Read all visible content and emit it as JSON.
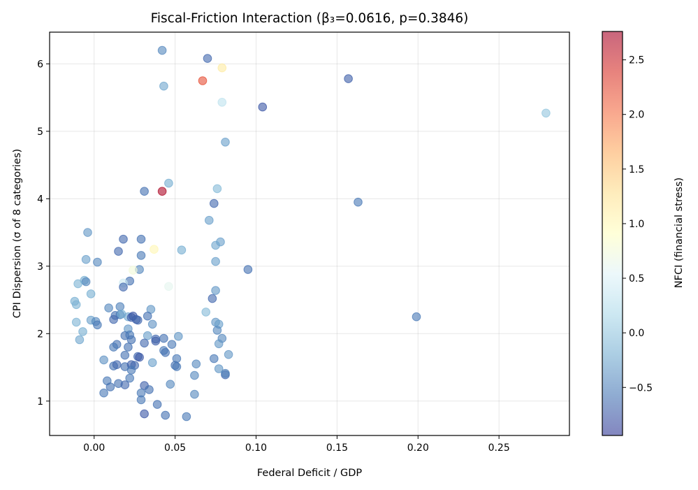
{
  "chart_data": {
    "type": "scatter",
    "title": "Fiscal-Friction Interaction (β₃=0.0616, p=0.3846)",
    "xlabel": "Federal Deficit / GDP",
    "ylabel": "CPI Dispersion (σ of 8 categories)",
    "colorbar_label": "NFCI (financial stress)",
    "xlim": [
      -0.0275,
      0.2935
    ],
    "ylim": [
      0.49,
      6.47
    ],
    "clim": [
      -0.94,
      2.76
    ],
    "xticks": [
      0.0,
      0.05,
      0.1,
      0.15,
      0.2,
      0.25
    ],
    "xtick_labels": [
      "0.00",
      "0.05",
      "0.10",
      "0.15",
      "0.20",
      "0.25"
    ],
    "yticks": [
      1,
      2,
      3,
      4,
      5,
      6
    ],
    "ytick_labels": [
      "1",
      "2",
      "3",
      "4",
      "5",
      "6"
    ],
    "cticks": [
      -0.5,
      0.0,
      0.5,
      1.0,
      1.5,
      2.0,
      2.5
    ],
    "ctick_labels": [
      "−0.5",
      "0.0",
      "0.5",
      "1.0",
      "1.5",
      "2.0",
      "2.5"
    ],
    "colormap": "RdYlBu_r",
    "marker_alpha": 0.6,
    "grid": true,
    "legend": null,
    "points": [
      {
        "x": 0.042,
        "y": 6.2,
        "c": -0.45
      },
      {
        "x": 0.07,
        "y": 6.08,
        "c": -0.65
      },
      {
        "x": 0.079,
        "y": 5.94,
        "c": 1.15
      },
      {
        "x": 0.067,
        "y": 5.75,
        "c": 2.2
      },
      {
        "x": 0.043,
        "y": 5.67,
        "c": -0.25
      },
      {
        "x": 0.079,
        "y": 5.43,
        "c": 0.3
      },
      {
        "x": 0.104,
        "y": 5.36,
        "c": -0.75
      },
      {
        "x": 0.157,
        "y": 5.78,
        "c": -0.7
      },
      {
        "x": 0.279,
        "y": 5.27,
        "c": 0.0
      },
      {
        "x": 0.081,
        "y": 4.84,
        "c": -0.3
      },
      {
        "x": 0.046,
        "y": 4.23,
        "c": -0.2
      },
      {
        "x": 0.031,
        "y": 4.11,
        "c": -0.6
      },
      {
        "x": 0.042,
        "y": 4.11,
        "c": 2.7
      },
      {
        "x": 0.076,
        "y": 4.15,
        "c": -0.1
      },
      {
        "x": 0.074,
        "y": 3.93,
        "c": -0.65
      },
      {
        "x": 0.163,
        "y": 3.95,
        "c": -0.55
      },
      {
        "x": 0.071,
        "y": 3.68,
        "c": -0.3
      },
      {
        "x": -0.004,
        "y": 3.5,
        "c": -0.35
      },
      {
        "x": 0.018,
        "y": 3.4,
        "c": -0.65
      },
      {
        "x": 0.029,
        "y": 3.4,
        "c": -0.6
      },
      {
        "x": 0.078,
        "y": 3.36,
        "c": -0.3
      },
      {
        "x": 0.075,
        "y": 3.31,
        "c": -0.25
      },
      {
        "x": 0.054,
        "y": 3.24,
        "c": -0.2
      },
      {
        "x": 0.037,
        "y": 3.25,
        "c": 1.0
      },
      {
        "x": 0.015,
        "y": 3.22,
        "c": -0.65
      },
      {
        "x": 0.029,
        "y": 3.16,
        "c": -0.55
      },
      {
        "x": -0.005,
        "y": 3.1,
        "c": -0.3
      },
      {
        "x": 0.002,
        "y": 3.06,
        "c": -0.45
      },
      {
        "x": 0.075,
        "y": 3.07,
        "c": -0.3
      },
      {
        "x": 0.095,
        "y": 2.95,
        "c": -0.6
      },
      {
        "x": 0.028,
        "y": 2.95,
        "c": -0.45
      },
      {
        "x": 0.024,
        "y": 2.94,
        "c": 0.75
      },
      {
        "x": 0.022,
        "y": 2.78,
        "c": -0.6
      },
      {
        "x": 0.018,
        "y": 2.75,
        "c": 0.4
      },
      {
        "x": 0.018,
        "y": 2.69,
        "c": -0.65
      },
      {
        "x": 0.046,
        "y": 2.7,
        "c": 0.6
      },
      {
        "x": -0.006,
        "y": 2.79,
        "c": -0.2
      },
      {
        "x": -0.005,
        "y": 2.77,
        "c": -0.45
      },
      {
        "x": -0.01,
        "y": 2.74,
        "c": -0.15
      },
      {
        "x": -0.002,
        "y": 2.59,
        "c": -0.2
      },
      {
        "x": 0.075,
        "y": 2.64,
        "c": -0.35
      },
      {
        "x": 0.073,
        "y": 2.52,
        "c": -0.65
      },
      {
        "x": -0.012,
        "y": 2.48,
        "c": -0.2
      },
      {
        "x": -0.011,
        "y": 2.43,
        "c": -0.15
      },
      {
        "x": 0.009,
        "y": 2.38,
        "c": -0.45
      },
      {
        "x": 0.016,
        "y": 2.4,
        "c": -0.5
      },
      {
        "x": 0.035,
        "y": 2.36,
        "c": -0.35
      },
      {
        "x": 0.069,
        "y": 2.32,
        "c": -0.1
      },
      {
        "x": -0.011,
        "y": 2.17,
        "c": -0.15
      },
      {
        "x": -0.002,
        "y": 2.2,
        "c": -0.3
      },
      {
        "x": 0.001,
        "y": 2.18,
        "c": -0.45
      },
      {
        "x": 0.002,
        "y": 2.13,
        "c": -0.55
      },
      {
        "x": -0.007,
        "y": 2.03,
        "c": -0.2
      },
      {
        "x": -0.009,
        "y": 1.91,
        "c": -0.25
      },
      {
        "x": 0.013,
        "y": 2.27,
        "c": -0.6
      },
      {
        "x": 0.016,
        "y": 2.28,
        "c": -0.55
      },
      {
        "x": 0.017,
        "y": 2.29,
        "c": -0.2
      },
      {
        "x": 0.012,
        "y": 2.21,
        "c": -0.65
      },
      {
        "x": 0.021,
        "y": 2.25,
        "c": -0.25
      },
      {
        "x": 0.023,
        "y": 2.24,
        "c": -0.7
      },
      {
        "x": 0.024,
        "y": 2.26,
        "c": -0.75
      },
      {
        "x": 0.026,
        "y": 2.21,
        "c": -0.7
      },
      {
        "x": 0.033,
        "y": 2.26,
        "c": -0.6
      },
      {
        "x": 0.036,
        "y": 2.14,
        "c": -0.4
      },
      {
        "x": 0.027,
        "y": 2.2,
        "c": -0.65
      },
      {
        "x": 0.075,
        "y": 2.17,
        "c": -0.35
      },
      {
        "x": 0.077,
        "y": 2.14,
        "c": -0.3
      },
      {
        "x": 0.076,
        "y": 2.05,
        "c": -0.45
      },
      {
        "x": 0.079,
        "y": 1.93,
        "c": -0.45
      },
      {
        "x": 0.077,
        "y": 1.85,
        "c": -0.35
      },
      {
        "x": 0.083,
        "y": 1.69,
        "c": -0.35
      },
      {
        "x": 0.074,
        "y": 1.63,
        "c": -0.55
      },
      {
        "x": 0.063,
        "y": 1.55,
        "c": -0.45
      },
      {
        "x": 0.077,
        "y": 1.48,
        "c": -0.35
      },
      {
        "x": 0.081,
        "y": 1.39,
        "c": -0.65
      },
      {
        "x": 0.081,
        "y": 1.41,
        "c": -0.5
      },
      {
        "x": 0.062,
        "y": 1.38,
        "c": -0.45
      },
      {
        "x": 0.062,
        "y": 1.1,
        "c": -0.45
      },
      {
        "x": 0.199,
        "y": 2.25,
        "c": -0.55
      },
      {
        "x": 0.021,
        "y": 2.07,
        "c": -0.35
      },
      {
        "x": 0.019,
        "y": 1.97,
        "c": -0.6
      },
      {
        "x": 0.022,
        "y": 1.98,
        "c": -0.55
      },
      {
        "x": 0.023,
        "y": 1.91,
        "c": -0.6
      },
      {
        "x": 0.033,
        "y": 1.97,
        "c": -0.3
      },
      {
        "x": 0.038,
        "y": 1.92,
        "c": -0.65
      },
      {
        "x": 0.038,
        "y": 1.89,
        "c": -0.7
      },
      {
        "x": 0.031,
        "y": 1.86,
        "c": -0.65
      },
      {
        "x": 0.043,
        "y": 1.93,
        "c": -0.6
      },
      {
        "x": 0.052,
        "y": 1.96,
        "c": -0.35
      },
      {
        "x": 0.048,
        "y": 1.84,
        "c": -0.55
      },
      {
        "x": 0.014,
        "y": 1.84,
        "c": -0.6
      },
      {
        "x": 0.012,
        "y": 1.8,
        "c": -0.55
      },
      {
        "x": 0.021,
        "y": 1.8,
        "c": -0.6
      },
      {
        "x": 0.043,
        "y": 1.75,
        "c": -0.55
      },
      {
        "x": 0.044,
        "y": 1.72,
        "c": -0.6
      },
      {
        "x": 0.006,
        "y": 1.61,
        "c": -0.4
      },
      {
        "x": 0.019,
        "y": 1.68,
        "c": -0.6
      },
      {
        "x": 0.027,
        "y": 1.66,
        "c": -0.65
      },
      {
        "x": 0.028,
        "y": 1.65,
        "c": -0.75
      },
      {
        "x": 0.051,
        "y": 1.63,
        "c": -0.55
      },
      {
        "x": 0.036,
        "y": 1.57,
        "c": -0.3
      },
      {
        "x": 0.05,
        "y": 1.53,
        "c": -0.6
      },
      {
        "x": 0.051,
        "y": 1.51,
        "c": -0.55
      },
      {
        "x": 0.012,
        "y": 1.52,
        "c": -0.6
      },
      {
        "x": 0.014,
        "y": 1.54,
        "c": -0.65
      },
      {
        "x": 0.019,
        "y": 1.51,
        "c": -0.6
      },
      {
        "x": 0.023,
        "y": 1.54,
        "c": -0.7
      },
      {
        "x": 0.025,
        "y": 1.53,
        "c": -0.65
      },
      {
        "x": 0.023,
        "y": 1.46,
        "c": -0.55
      },
      {
        "x": 0.022,
        "y": 1.34,
        "c": -0.55
      },
      {
        "x": 0.008,
        "y": 1.3,
        "c": -0.55
      },
      {
        "x": 0.01,
        "y": 1.21,
        "c": -0.6
      },
      {
        "x": 0.015,
        "y": 1.26,
        "c": -0.6
      },
      {
        "x": 0.019,
        "y": 1.24,
        "c": -0.65
      },
      {
        "x": 0.006,
        "y": 1.12,
        "c": -0.55
      },
      {
        "x": 0.031,
        "y": 1.23,
        "c": -0.7
      },
      {
        "x": 0.034,
        "y": 1.17,
        "c": -0.6
      },
      {
        "x": 0.029,
        "y": 1.12,
        "c": -0.55
      },
      {
        "x": 0.029,
        "y": 1.02,
        "c": -0.55
      },
      {
        "x": 0.047,
        "y": 1.25,
        "c": -0.45
      },
      {
        "x": 0.039,
        "y": 0.95,
        "c": -0.6
      },
      {
        "x": 0.031,
        "y": 0.81,
        "c": -0.75
      },
      {
        "x": 0.044,
        "y": 0.79,
        "c": -0.6
      },
      {
        "x": 0.057,
        "y": 0.77,
        "c": -0.55
      }
    ]
  }
}
